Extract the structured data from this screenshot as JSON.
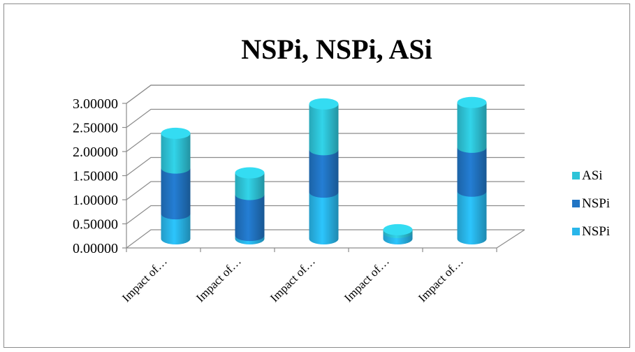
{
  "chart_data": {
    "type": "bar",
    "stacked": true,
    "style": "3d-cylinder",
    "title": "NSPi, NSPi, ASi",
    "xlabel": "",
    "ylabel": "",
    "categories": [
      "Impact of…",
      "Impact of…",
      "Impact of…",
      "Impact of…",
      "Impact of…"
    ],
    "series": [
      {
        "name": "NSPi",
        "color": "#29b6ea",
        "values": [
          0.52,
          0.07,
          0.97,
          0.13,
          0.99
        ]
      },
      {
        "name": "NSPi",
        "color": "#2175c4",
        "values": [
          0.95,
          0.85,
          0.88,
          0.0,
          0.91
        ]
      },
      {
        "name": "ASi",
        "color": "#2ec4d8",
        "values": [
          0.72,
          0.45,
          0.95,
          0.06,
          0.93
        ]
      }
    ],
    "ylim": [
      0,
      3
    ],
    "yticks": [
      "0.00000",
      "0.50000",
      "1.00000",
      "1.50000",
      "2.00000",
      "2.50000",
      "3.00000"
    ],
    "grid": true,
    "legend_position": "right"
  }
}
